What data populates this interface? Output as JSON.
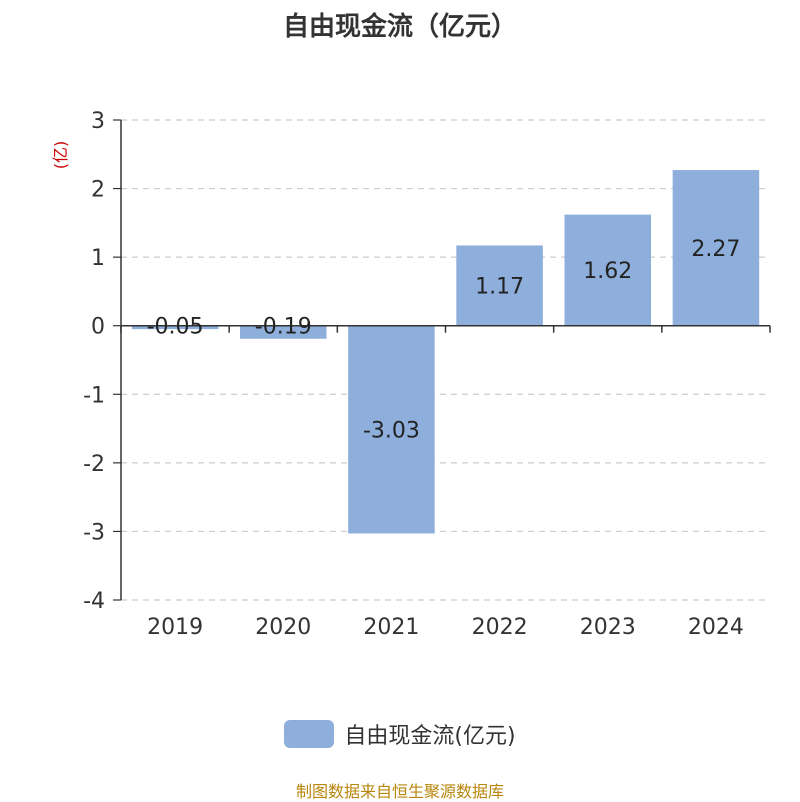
{
  "chart_data": {
    "type": "bar",
    "title": "自由现金流（亿元）",
    "ylabel": "(亿)",
    "categories": [
      "2019",
      "2020",
      "2021",
      "2022",
      "2023",
      "2024"
    ],
    "series": [
      {
        "name": "自由现金流(亿元)",
        "values": [
          -0.05,
          -0.19,
          -3.03,
          1.17,
          1.62,
          2.27
        ]
      }
    ],
    "data_labels": [
      "-0.05",
      "-0.19",
      "-3.03",
      "1.17",
      "1.62",
      "2.27"
    ],
    "ylim": [
      -4,
      3
    ],
    "yticks": [
      3,
      2,
      1,
      0,
      -1,
      -2,
      -3,
      -4
    ],
    "grid": true,
    "legend_position": "bottom",
    "colors": {
      "bar": "#8eafdb",
      "ylabel": "#cc0000",
      "source": "#b8860b",
      "grid": "#cccccc"
    }
  },
  "footer": {
    "source": "制图数据来自恒生聚源数据库"
  }
}
